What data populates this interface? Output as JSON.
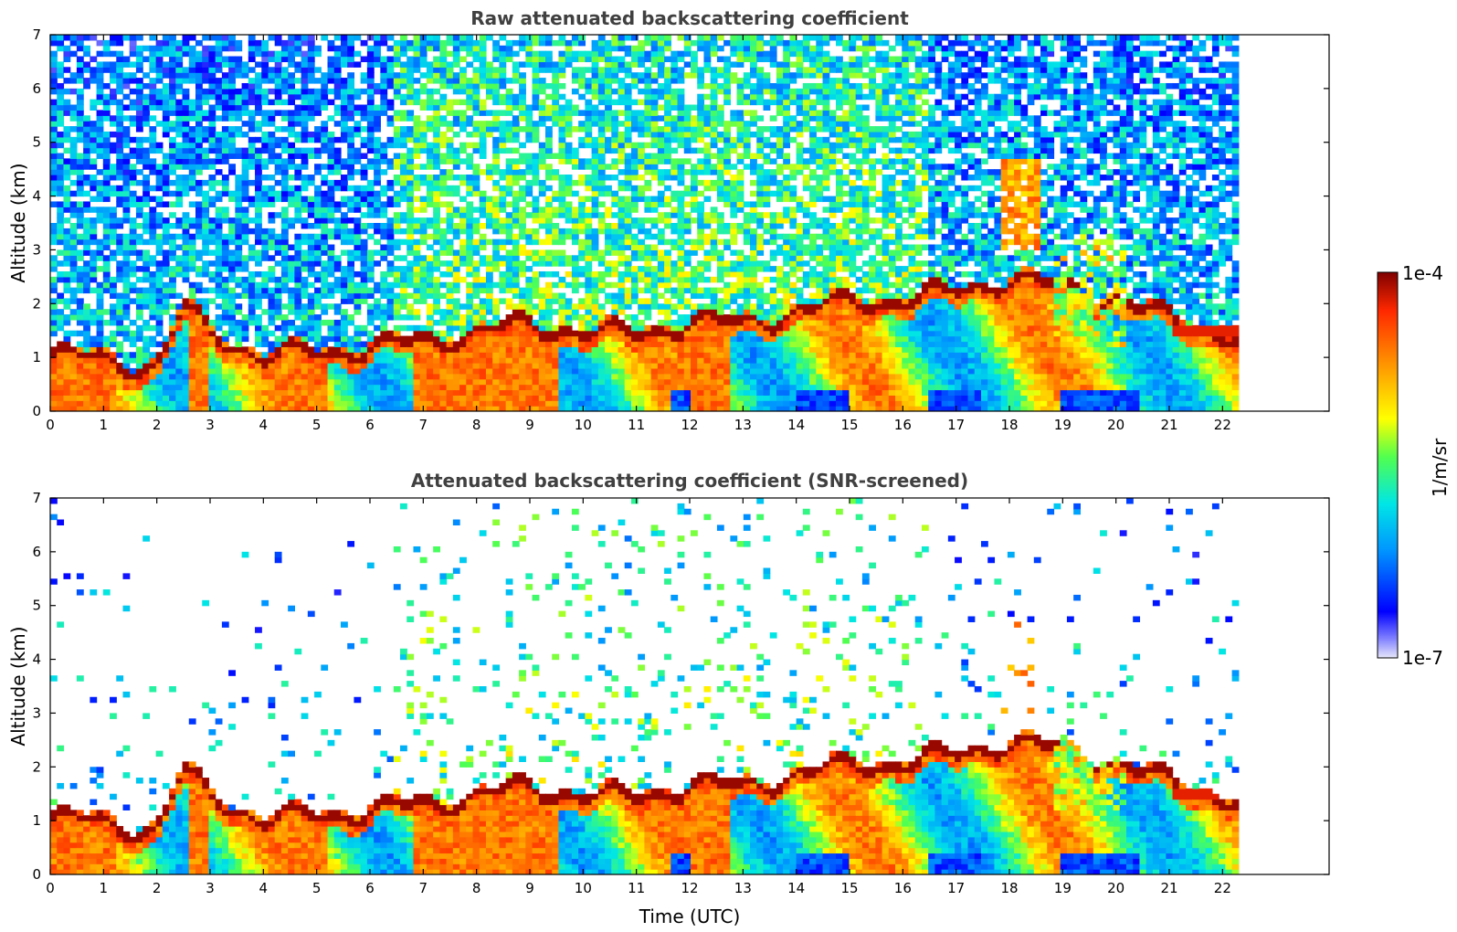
{
  "chart_data": [
    {
      "type": "heatmap",
      "title": "Raw attenuated backscattering coefficient",
      "xlabel": "",
      "ylabel": "Altitude (km)",
      "xlim": [
        0,
        24
      ],
      "ylim": [
        0,
        7
      ],
      "xticks": [
        "0",
        "1",
        "2",
        "3",
        "4",
        "5",
        "6",
        "7",
        "8",
        "9",
        "10",
        "11",
        "12",
        "13",
        "14",
        "15",
        "16",
        "17",
        "18",
        "19",
        "20",
        "21",
        "22"
      ],
      "yticks": [
        "0",
        "1",
        "2",
        "3",
        "4",
        "5",
        "6",
        "7"
      ],
      "data_end_time": 22.3,
      "screened": false
    },
    {
      "type": "heatmap",
      "title": "Attenuated backscattering coefficient (SNR-screened)",
      "xlabel": "Time (UTC)",
      "ylabel": "Altitude (km)",
      "xlim": [
        0,
        24
      ],
      "ylim": [
        0,
        7
      ],
      "xticks": [
        "0",
        "1",
        "2",
        "3",
        "4",
        "5",
        "6",
        "7",
        "8",
        "9",
        "10",
        "11",
        "12",
        "13",
        "14",
        "15",
        "16",
        "17",
        "18",
        "19",
        "20",
        "21",
        "22"
      ],
      "yticks": [
        "0",
        "1",
        "2",
        "3",
        "4",
        "5",
        "6",
        "7"
      ],
      "data_end_time": 22.3,
      "screened": true
    }
  ],
  "colorbar": {
    "label": "1/m/sr",
    "max_label": "1e-4",
    "min_label": "1e-7",
    "scale": "log",
    "colormap": [
      "#e6e6fa",
      "#0000ff",
      "#0096ff",
      "#00e6e6",
      "#50ff50",
      "#ffff00",
      "#ff9600",
      "#ff2800",
      "#7f0000"
    ]
  }
}
